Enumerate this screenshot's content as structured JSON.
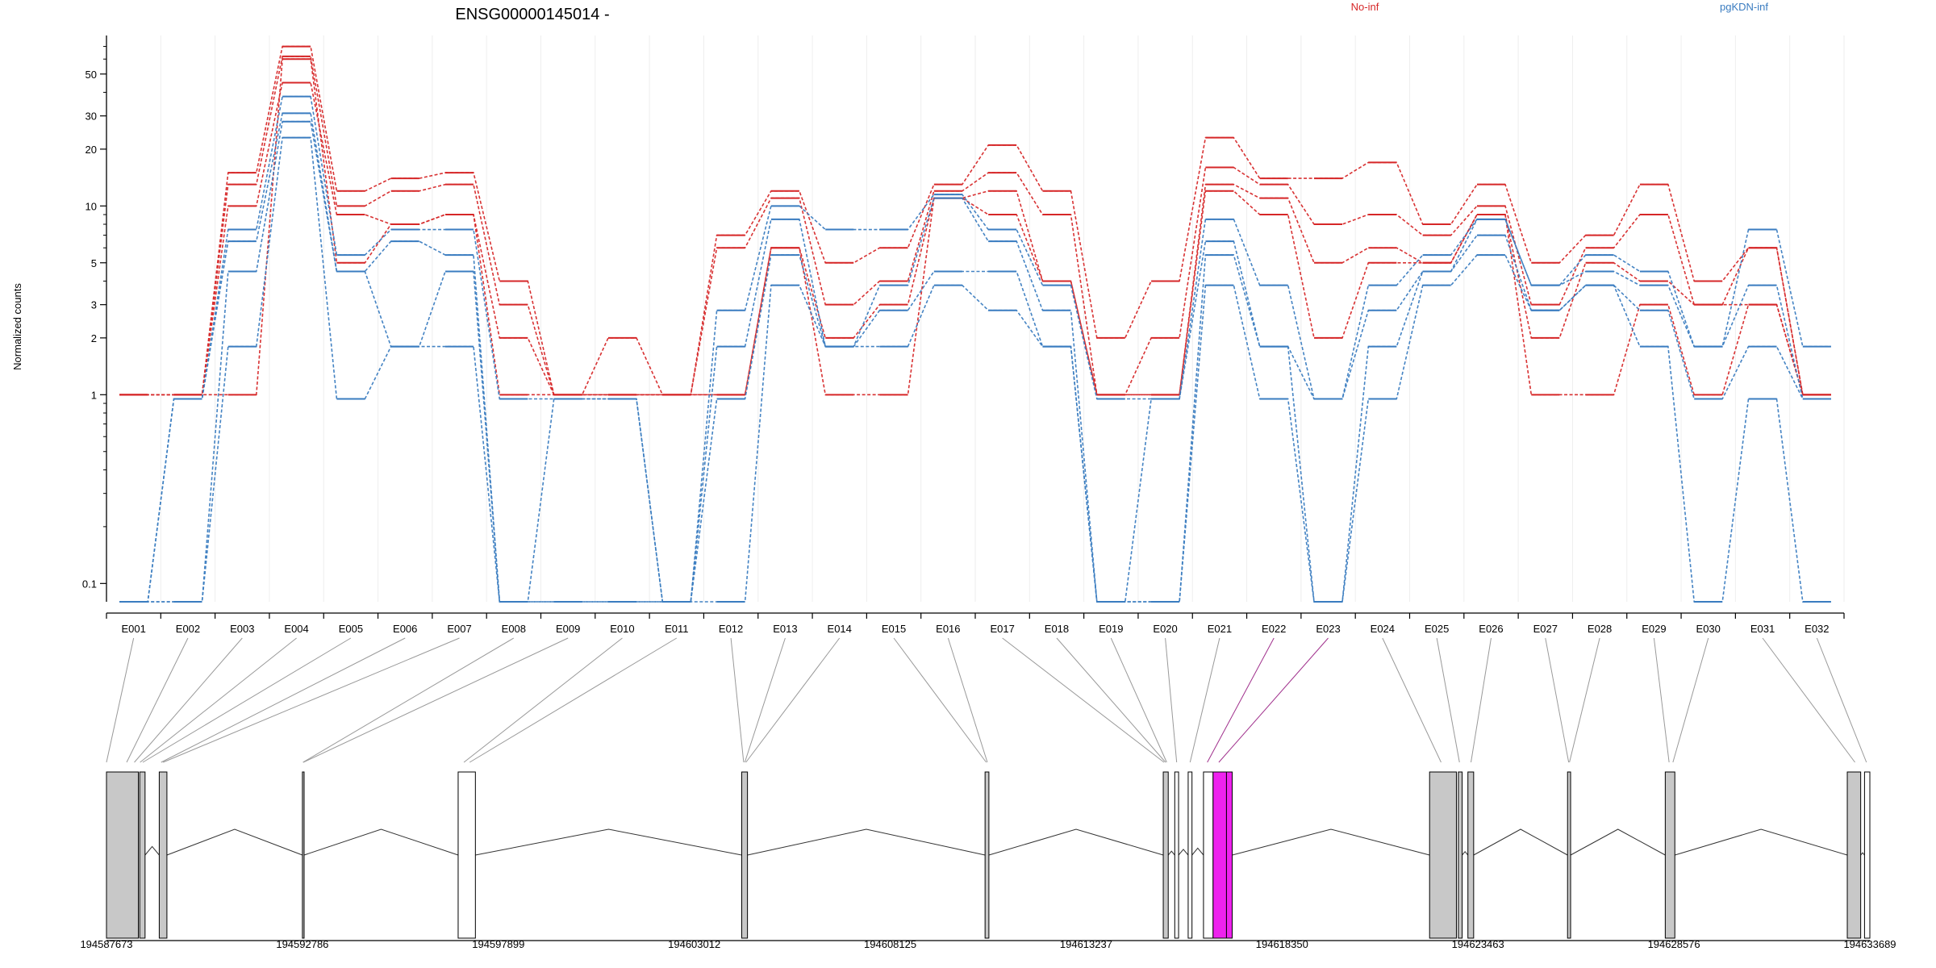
{
  "chart_data": {
    "type": "line",
    "title": "ENSG00000145014 -",
    "ylabel": "Normalized counts",
    "xlabel": "",
    "yscale": "log",
    "ylim": [
      0.08,
      80
    ],
    "yticks": [
      0.1,
      1,
      2,
      3,
      5,
      10,
      20,
      30,
      50
    ],
    "yticklabels": [
      "0.1",
      "1",
      "2",
      "3",
      "5",
      "10",
      "20",
      "30",
      "50"
    ],
    "grid": "vertical, faint",
    "legend": "top-right",
    "categories": [
      "E001",
      "E002",
      "E003",
      "E004",
      "E005",
      "E006",
      "E007",
      "E008",
      "E009",
      "E010",
      "E011",
      "E012",
      "E013",
      "E014",
      "E015",
      "E016",
      "E017",
      "E018",
      "E019",
      "E020",
      "E021",
      "E022",
      "E023",
      "E024",
      "E025",
      "E026",
      "E027",
      "E028",
      "E029",
      "E030",
      "E031",
      "E032"
    ],
    "colors": {
      "No-inf": "#d62728",
      "pgKDN-inf": "#3a7cc0",
      "highlight": "#ee22ee",
      "exon": "#c8c8c8"
    },
    "groups": [
      {
        "name": "No-inf",
        "color": "#d62728",
        "series": [
          {
            "values": [
              1,
              1,
              15,
              70,
              12,
              14,
              15,
              4,
              1,
              2,
              1,
              7,
              12,
              5,
              6,
              13,
              21,
              12,
              2,
              4,
              23,
              14,
              14,
              17,
              8,
              13,
              5,
              7,
              13,
              4,
              6,
              1
            ]
          },
          {
            "values": [
              1,
              1,
              13,
              62,
              10,
              12,
              13,
              3,
              1,
              1,
              1,
              6,
              11,
              3,
              4,
              12,
              15,
              9,
              1,
              2,
              16,
              13,
              8,
              9,
              7,
              10,
              3,
              6,
              9,
              3,
              6,
              1
            ]
          },
          {
            "values": [
              1,
              1,
              10,
              45,
              9,
              8,
              9,
              2,
              1,
              1,
              1,
              1,
              6,
              2,
              3,
              11,
              12,
              4,
              1,
              1,
              13,
              11,
              5,
              6,
              5,
              9,
              2,
              5,
              4,
              3,
              3,
              1
            ]
          },
          {
            "values": [
              1,
              1,
              1,
              60,
              5,
              8,
              9,
              1,
              1,
              1,
              1,
              1,
              6,
              1,
              1,
              11,
              9,
              4,
              1,
              1,
              12,
              9,
              2,
              5,
              5,
              9,
              1,
              1,
              3,
              1,
              3,
              1
            ]
          }
        ]
      },
      {
        "name": "pgKDN-inf",
        "color": "#3a7cc0",
        "series": [
          {
            "values": [
              0.08,
              0.95,
              7.5,
              38,
              5.5,
              7.5,
              7.5,
              0.95,
              0.95,
              0.95,
              0.08,
              2.8,
              10,
              7.5,
              7.5,
              11.5,
              7.5,
              3.8,
              0.95,
              0.95,
              8.5,
              3.8,
              0.95,
              3.8,
              5.5,
              8.5,
              3.8,
              5.5,
              4.5,
              1.8,
              7.5,
              1.8
            ]
          },
          {
            "values": [
              0.08,
              0.95,
              6.5,
              31,
              4.5,
              6.5,
              5.5,
              0.08,
              0.95,
              0.95,
              0.08,
              1.8,
              8.5,
              1.8,
              3.8,
              11,
              6.5,
              2.8,
              0.08,
              0.95,
              6.5,
              1.8,
              0.95,
              2.8,
              4.5,
              8.5,
              3.8,
              4.5,
              3.8,
              1.8,
              3.8,
              0.95
            ]
          },
          {
            "values": [
              0.08,
              0.08,
              4.5,
              28,
              4.5,
              1.8,
              4.5,
              0.08,
              0.08,
              0.08,
              0.08,
              0.95,
              5.5,
              1.8,
              2.8,
              4.5,
              4.5,
              1.8,
              0.08,
              0.08,
              5.5,
              1.8,
              0.08,
              1.8,
              4.5,
              7.0,
              2.8,
              3.8,
              2.8,
              0.95,
              1.8,
              0.95
            ]
          },
          {
            "values": [
              0.08,
              0.08,
              1.8,
              23,
              0.95,
              1.8,
              1.8,
              0.08,
              0.08,
              0.08,
              0.08,
              0.08,
              3.8,
              1.8,
              1.8,
              3.8,
              2.8,
              1.8,
              0.08,
              0.08,
              3.8,
              0.95,
              0.08,
              0.95,
              3.8,
              5.5,
              2.8,
              3.8,
              1.8,
              0.08,
              0.95,
              0.08
            ]
          }
        ]
      }
    ],
    "highlight_exons": [
      "E022",
      "E023"
    ],
    "gene_model": {
      "coord_range": [
        194587673,
        194633689
      ],
      "coord_labels": [
        "194587673",
        "194592786",
        "194597899",
        "194603012",
        "194608125",
        "194613237",
        "194618350",
        "194623463",
        "194628576",
        "194633689"
      ],
      "exon_segments": [
        {
          "start": 194587673,
          "end": 194588505,
          "fill": "gray"
        },
        {
          "start": 194588540,
          "end": 194588680,
          "fill": "gray"
        },
        {
          "start": 194589050,
          "end": 194589250,
          "fill": "gray"
        },
        {
          "start": 194592786,
          "end": 194592830,
          "fill": "gray"
        },
        {
          "start": 194596850,
          "end": 194597300,
          "fill": "white"
        },
        {
          "start": 194604250,
          "end": 194604400,
          "fill": "gray"
        },
        {
          "start": 194610600,
          "end": 194610700,
          "fill": "gray"
        },
        {
          "start": 194615250,
          "end": 194615380,
          "fill": "gray"
        },
        {
          "start": 194615550,
          "end": 194615650,
          "fill": "white"
        },
        {
          "start": 194615900,
          "end": 194616000,
          "fill": "white"
        },
        {
          "start": 194616300,
          "end": 194616550,
          "fill": "white"
        },
        {
          "start": 194616550,
          "end": 194616900,
          "fill": "highlight"
        },
        {
          "start": 194616900,
          "end": 194617050,
          "fill": "highlight"
        },
        {
          "start": 194622200,
          "end": 194622900,
          "fill": "gray"
        },
        {
          "start": 194622950,
          "end": 194623050,
          "fill": "gray"
        },
        {
          "start": 194623200,
          "end": 194623350,
          "fill": "gray"
        },
        {
          "start": 194625800,
          "end": 194625880,
          "fill": "gray"
        },
        {
          "start": 194628350,
          "end": 194628600,
          "fill": "gray"
        },
        {
          "start": 194633100,
          "end": 194633450,
          "fill": "gray"
        },
        {
          "start": 194633550,
          "end": 194633689,
          "fill": "white"
        }
      ],
      "exon_map": [
        194587673,
        194588200,
        194588400,
        194588550,
        194588620,
        194589100,
        194589150,
        194592800,
        194592810,
        194597000,
        194597150,
        194604300,
        194604330,
        194604360,
        194610630,
        194610660,
        194615270,
        194615310,
        194615340,
        194615600,
        194615950,
        194616400,
        194616700,
        194622500,
        194622980,
        194623280,
        194625830,
        194625850,
        194628450,
        194628550,
        194633300,
        194633600
      ]
    }
  }
}
